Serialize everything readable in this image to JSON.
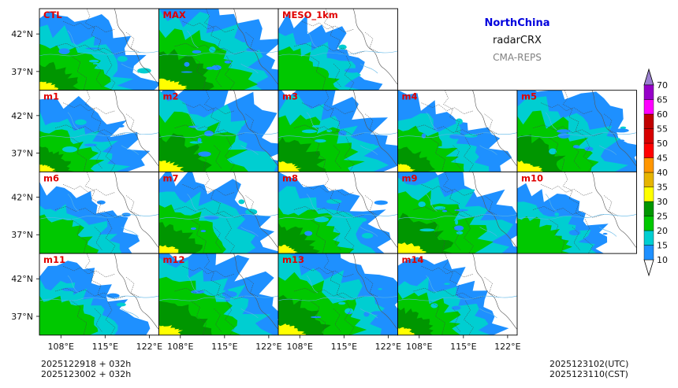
{
  "header": {
    "region": "NorthChina",
    "variable": "radarCRX",
    "system": "CMA-REPS"
  },
  "panels": [
    {
      "label": "CTL",
      "row": 0,
      "col": 0,
      "intensity": 0.55
    },
    {
      "label": "MAX",
      "row": 0,
      "col": 1,
      "intensity": 0.95
    },
    {
      "label": "MESO_1km",
      "row": 0,
      "col": 2,
      "intensity": 0.35
    },
    {
      "label": "m1",
      "row": 1,
      "col": 0,
      "intensity": 0.4
    },
    {
      "label": "m2",
      "row": 1,
      "col": 1,
      "intensity": 0.85
    },
    {
      "label": "m3",
      "row": 1,
      "col": 2,
      "intensity": 0.75
    },
    {
      "label": "m4",
      "row": 1,
      "col": 3,
      "intensity": 0.45
    },
    {
      "label": "m5",
      "row": 1,
      "col": 4,
      "intensity": 0.8
    },
    {
      "label": "m6",
      "row": 2,
      "col": 0,
      "intensity": 0.3
    },
    {
      "label": "m7",
      "row": 2,
      "col": 1,
      "intensity": 0.6
    },
    {
      "label": "m8",
      "row": 2,
      "col": 2,
      "intensity": 0.55
    },
    {
      "label": "m9",
      "row": 2,
      "col": 3,
      "intensity": 0.9
    },
    {
      "label": "m10",
      "row": 2,
      "col": 4,
      "intensity": 0.25
    },
    {
      "label": "m11",
      "row": 3,
      "col": 0,
      "intensity": 0.35
    },
    {
      "label": "m12",
      "row": 3,
      "col": 1,
      "intensity": 0.8
    },
    {
      "label": "m13",
      "row": 3,
      "col": 2,
      "intensity": 0.85
    },
    {
      "label": "m14",
      "row": 3,
      "col": 3,
      "intensity": 0.45
    }
  ],
  "axes": {
    "lat_labels": [
      "42°N",
      "37°N"
    ],
    "lon_labels": [
      "108°E",
      "115°E",
      "122°E"
    ]
  },
  "colorbar": {
    "levels": [
      "10",
      "15",
      "20",
      "25",
      "30",
      "35",
      "40",
      "45",
      "50",
      "55",
      "60",
      "65",
      "70"
    ],
    "colors": [
      "#1e90ff",
      "#00ced1",
      "#00c800",
      "#009600",
      "#ffff00",
      "#e6b400",
      "#ff9600",
      "#ff0000",
      "#d70000",
      "#c00000",
      "#ff00ff",
      "#9600c8"
    ],
    "under_color": "#ffffff",
    "over_color": "#9b80d0"
  },
  "footer": {
    "init_utc": "2025122918  +  032h",
    "init_cst": "2025123002  +  032h",
    "valid_utc": "2025123102(UTC)",
    "valid_cst": "2025123110(CST)"
  }
}
